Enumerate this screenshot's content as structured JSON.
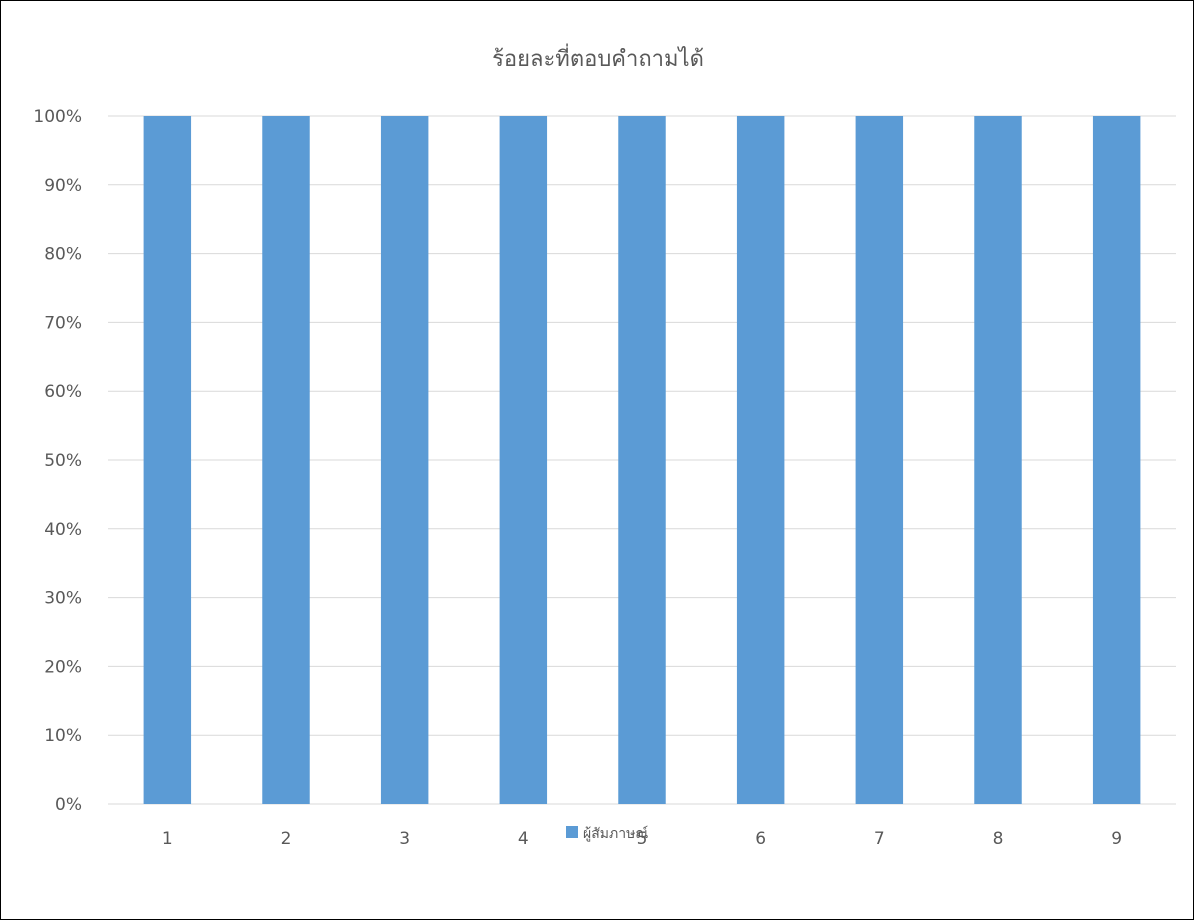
{
  "chart_data": {
    "type": "bar",
    "title": "ร้อยละที่ตอบคำถามได้",
    "categories": [
      "1",
      "2",
      "3",
      "4",
      "5",
      "6",
      "7",
      "8",
      "9"
    ],
    "series": [
      {
        "name": "ผู้สัมภาษณ์",
        "values": [
          100,
          100,
          100,
          100,
          100,
          100,
          100,
          100,
          100
        ],
        "color": "#5b9bd5"
      }
    ],
    "ylim": [
      0,
      100
    ],
    "yticks": [
      0,
      10,
      20,
      30,
      40,
      50,
      60,
      70,
      80,
      90,
      100
    ],
    "ytick_labels": [
      "0%",
      "10%",
      "20%",
      "30%",
      "40%",
      "50%",
      "60%",
      "70%",
      "80%",
      "90%",
      "100%"
    ],
    "grid": true,
    "legend_position": "bottom",
    "colors": {
      "gridline": "#d9d9d9",
      "text": "#595959"
    }
  }
}
